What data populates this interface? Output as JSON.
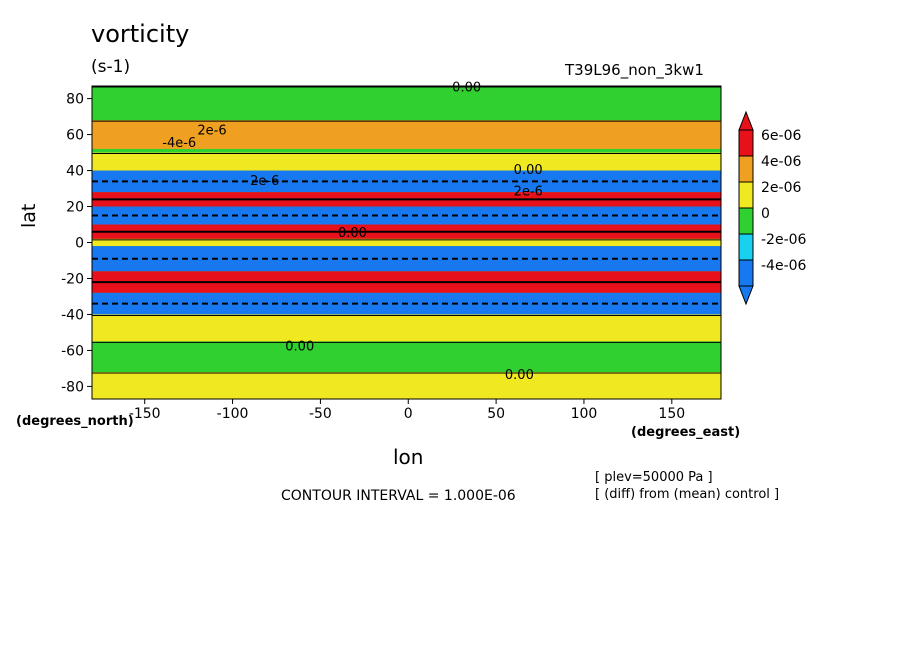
{
  "title": "vorticity",
  "units": "(s-1)",
  "run_name": "T39L96_non_3kw1",
  "xlabel": "lon",
  "ylabel": "lat",
  "xunit": "(degrees_east)",
  "yunit": "(degrees_north)",
  "info_lines": [
    "[ plev=50000 Pa ]",
    "[ (diff) from (mean) control ]"
  ],
  "contour_interval": "CONTOUR INTERVAL = 1.000E-06",
  "chart_data": {
    "type": "heatmap",
    "title": "vorticity",
    "units": "(s-1)",
    "xlabel": "lon",
    "ylabel": "lat",
    "xlim": [
      -180,
      178
    ],
    "ylim": [
      -87,
      87
    ],
    "xticks": [
      -150,
      -100,
      -50,
      0,
      50,
      100,
      150
    ],
    "yticks": [
      80,
      60,
      40,
      20,
      0,
      -20,
      -40,
      -60,
      -80
    ],
    "xtick_labels": [
      "-150",
      "-100",
      "-50",
      "0",
      "50",
      "100",
      "150"
    ],
    "ytick_labels": [
      "80",
      "60",
      "40",
      "20",
      "0",
      "-20",
      "-40",
      "-60",
      "-80"
    ],
    "contour_interval": 1e-06,
    "colorbar": {
      "labels": [
        "6e-06",
        "4e-06",
        "2e-06",
        "0",
        "-2e-06",
        "-4e-06"
      ],
      "levels": [
        6e-06,
        4e-06,
        2e-06,
        0,
        -2e-06,
        -4e-06
      ],
      "colors": [
        "#e8101a",
        "#f0a020",
        "#f0e820",
        "#30d030",
        "#18d0f0",
        "#1878f0"
      ]
    },
    "contour_labels": [
      "0.00",
      "2e-6",
      "-4e-6",
      "2e-6",
      "0.00",
      "0.00",
      "2e-6",
      "0.00",
      "0.00"
    ],
    "bands": [
      {
        "lat_min": 70,
        "lat_max": 87,
        "value": -1e-06
      },
      {
        "lat_min": 52,
        "lat_max": 68,
        "value": 3e-06
      },
      {
        "lat_min": 40,
        "lat_max": 50,
        "value": 1e-06
      },
      {
        "lat_min": 28,
        "lat_max": 40,
        "value": -4e-06
      },
      {
        "lat_min": 20,
        "lat_max": 28,
        "value": 6e-06
      },
      {
        "lat_min": 10,
        "lat_max": 20,
        "value": -4e-06
      },
      {
        "lat_min": 2,
        "lat_max": 10,
        "value": 6e-06
      },
      {
        "lat_min": -2,
        "lat_max": 2,
        "value": 1e-06
      },
      {
        "lat_min": -16,
        "lat_max": -2,
        "value": -4e-06
      },
      {
        "lat_min": -28,
        "lat_max": -16,
        "value": 6e-06
      },
      {
        "lat_min": -40,
        "lat_max": -28,
        "value": -4e-06
      },
      {
        "lat_min": -55,
        "lat_max": -40,
        "value": 1e-06
      },
      {
        "lat_min": -72,
        "lat_max": -55,
        "value": -1e-06
      },
      {
        "lat_min": -87,
        "lat_max": -72,
        "value": 1e-06
      }
    ]
  }
}
